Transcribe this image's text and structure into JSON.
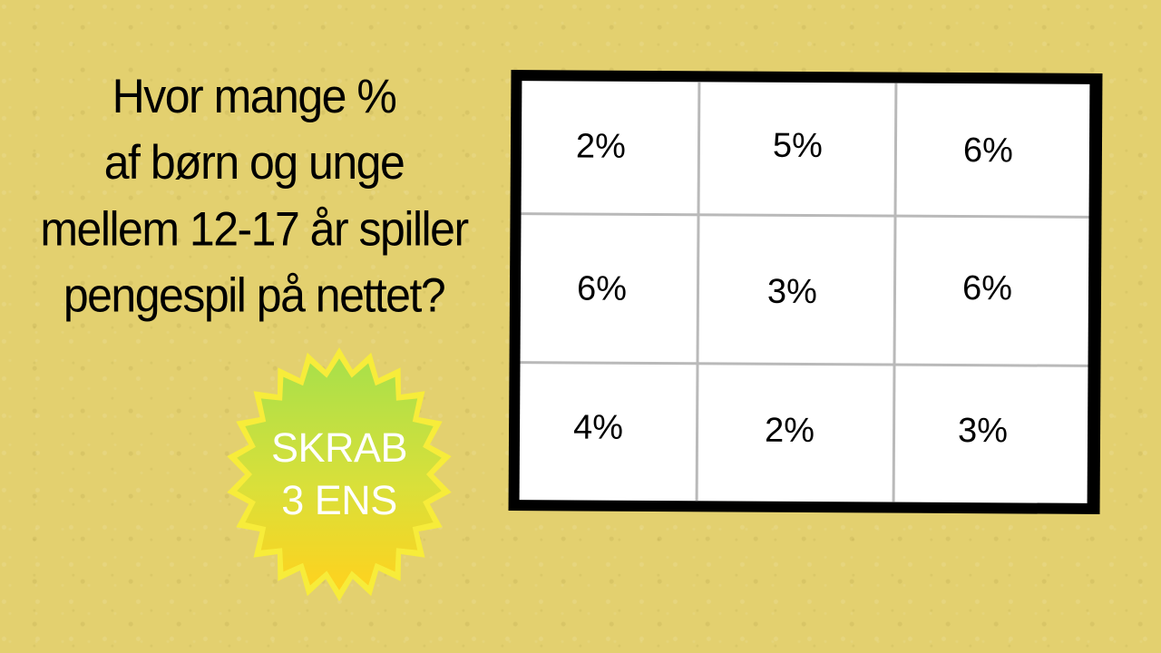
{
  "question": {
    "lines": [
      "Hvor mange %",
      "af børn og unge",
      "mellem 12-17 år spiller",
      "pengespil på nettet?"
    ]
  },
  "badge": {
    "lines": [
      "SKRAB",
      "3 ENS"
    ],
    "colors": {
      "outer": "#f7ec3a",
      "inner_top": "#a8e04a",
      "inner_bottom": "#ffd21e",
      "text": "#ffffff"
    }
  },
  "board": {
    "cells": [
      [
        "2%",
        "5%",
        "6%"
      ],
      [
        "6%",
        "3%",
        "6%"
      ],
      [
        "4%",
        "2%",
        "3%"
      ]
    ],
    "colors": {
      "frame": "#000000",
      "cell_bg": "#ffffff",
      "grid_line": "#b9b9b9"
    }
  },
  "background_color": "#e3d06f"
}
